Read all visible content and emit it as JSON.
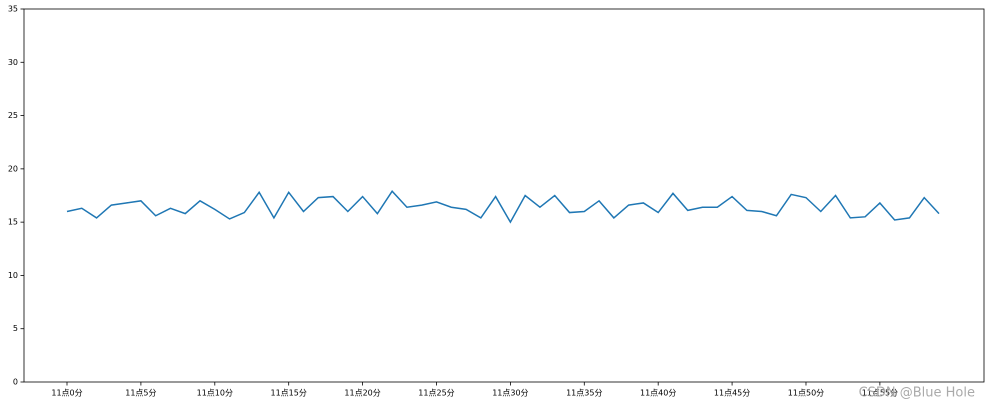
{
  "chart_data": {
    "type": "line",
    "categories": [
      "11点0分",
      null,
      null,
      null,
      null,
      "11点5分",
      null,
      null,
      null,
      null,
      "11点10分",
      null,
      null,
      null,
      null,
      "11点15分",
      null,
      null,
      null,
      null,
      "11点20分",
      null,
      null,
      null,
      null,
      "11点25分",
      null,
      null,
      null,
      null,
      "11点30分",
      null,
      null,
      null,
      null,
      "11点35分",
      null,
      null,
      null,
      null,
      "11点40分",
      null,
      null,
      null,
      null,
      "11点45分",
      null,
      null,
      null,
      null,
      "11点50分",
      null,
      null,
      null,
      null,
      "11点55分",
      null,
      null,
      null,
      null
    ],
    "series": [
      {
        "color": "#1f77b4",
        "values": [
          16.0,
          16.3,
          15.4,
          16.6,
          16.8,
          17.0,
          15.6,
          16.3,
          15.8,
          17.0,
          16.2,
          15.3,
          15.9,
          17.8,
          15.4,
          17.8,
          16.0,
          17.3,
          17.4,
          16.0,
          17.4,
          15.8,
          17.9,
          16.4,
          16.6,
          16.9,
          16.4,
          16.2,
          15.4,
          17.4,
          15.0,
          17.5,
          16.4,
          17.5,
          15.9,
          16.0,
          17.0,
          15.4,
          16.6,
          16.8,
          15.9,
          17.7,
          16.1,
          16.4,
          16.4,
          17.4,
          16.1,
          16.0,
          15.6,
          17.6,
          17.3,
          16.0,
          17.5,
          15.4,
          15.5,
          16.8,
          15.2,
          15.4,
          17.3,
          15.8
        ]
      }
    ],
    "ylim": [
      0,
      35
    ],
    "yticks": [
      0,
      5,
      10,
      15,
      20,
      25,
      30,
      35
    ],
    "watermark": "CSDN @Blue Hole"
  }
}
